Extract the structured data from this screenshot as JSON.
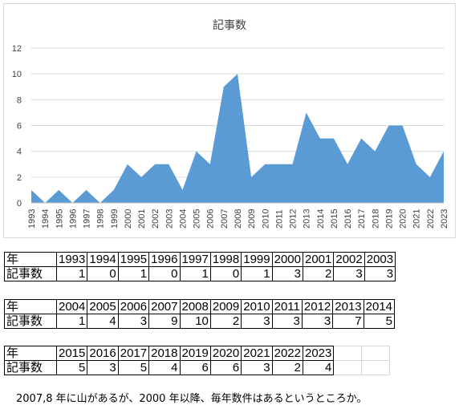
{
  "chart_data": {
    "type": "area",
    "title": "記事数",
    "x": [
      "1993",
      "1994",
      "1995",
      "1996",
      "1997",
      "1998",
      "1999",
      "2000",
      "2001",
      "2002",
      "2003",
      "2004",
      "2005",
      "2006",
      "2007",
      "2008",
      "2009",
      "2010",
      "2011",
      "2012",
      "2013",
      "2014",
      "2015",
      "2016",
      "2017",
      "2018",
      "2019",
      "2020",
      "2021",
      "2022",
      "2023"
    ],
    "values": [
      1,
      0,
      1,
      0,
      1,
      0,
      1,
      3,
      2,
      3,
      3,
      1,
      4,
      3,
      9,
      10,
      2,
      3,
      3,
      3,
      7,
      5,
      5,
      3,
      5,
      4,
      6,
      6,
      3,
      2,
      4
    ],
    "yticks": [
      0,
      2,
      4,
      6,
      8,
      10,
      12
    ],
    "ylim": [
      0,
      12
    ],
    "grid": true,
    "color": "#5b9bd5"
  },
  "table": {
    "row_header_year": "年",
    "row_header_count": "記事数",
    "blocks": [
      {
        "years": [
          "1993",
          "1994",
          "1995",
          "1996",
          "1997",
          "1998",
          "1999",
          "2000",
          "2001",
          "2002",
          "2003"
        ],
        "counts": [
          "1",
          "0",
          "1",
          "0",
          "1",
          "0",
          "1",
          "3",
          "2",
          "3",
          "3"
        ]
      },
      {
        "years": [
          "2004",
          "2005",
          "2006",
          "2007",
          "2008",
          "2009",
          "2010",
          "2011",
          "2012",
          "2013",
          "2014"
        ],
        "counts": [
          "1",
          "4",
          "3",
          "9",
          "10",
          "2",
          "3",
          "3",
          "3",
          "7",
          "5"
        ]
      },
      {
        "years": [
          "2015",
          "2016",
          "2017",
          "2018",
          "2019",
          "2020",
          "2021",
          "2022",
          "2023"
        ],
        "counts": [
          "5",
          "3",
          "5",
          "4",
          "6",
          "6",
          "3",
          "2",
          "4"
        ]
      }
    ]
  },
  "note": "2007,8 年に山があるが、2000 年以降、毎年数件はあるというところか。"
}
